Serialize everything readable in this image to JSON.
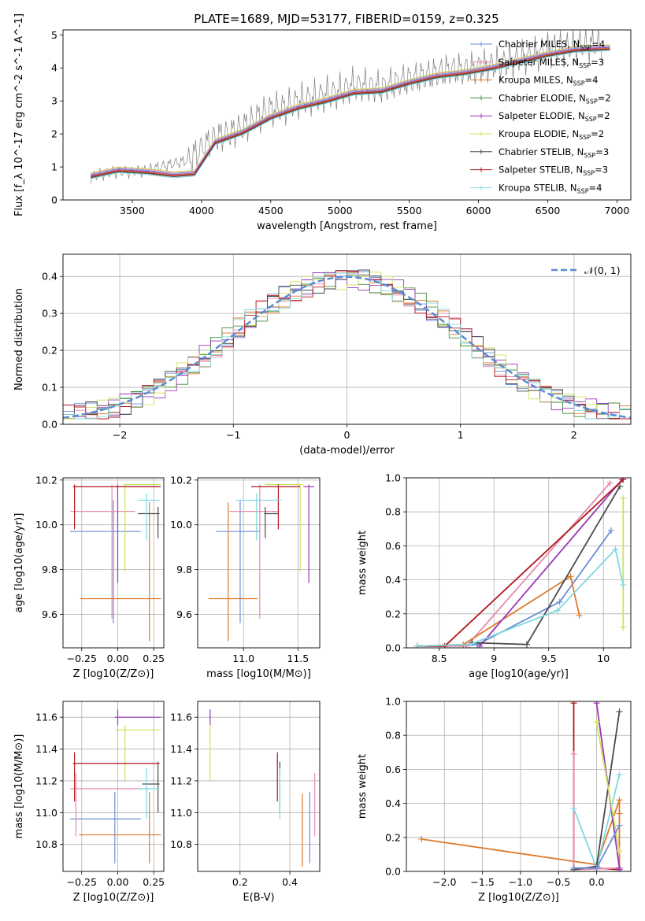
{
  "figure_title": "PLATE=1689, MJD=53177, FIBERID=0159, z=0.325",
  "chart_data": [
    {
      "type": "line",
      "panel": "spectrum",
      "xlabel": "wavelength [Angstrom, rest frame]",
      "ylabel": "Flux [f_λ 10^-17 erg cm^-2 s^-1 A^-1]",
      "xlim": [
        3000,
        7100
      ],
      "ylim": [
        0,
        5.15
      ],
      "xticks": [
        3500,
        4000,
        4500,
        5000,
        5500,
        6000,
        6500,
        7000
      ],
      "yticks": [
        0,
        1,
        2,
        3,
        4,
        5
      ],
      "grid": false,
      "legend": "top-right",
      "data_series": {
        "name": "",
        "color": "#808080",
        "x": [
          3200,
          3300,
          3400,
          3500,
          3600,
          3700,
          3800,
          3900,
          4000,
          4100,
          4200,
          4300,
          4400,
          4500,
          4600,
          4700,
          4800,
          4900,
          5000,
          5100,
          5200,
          5300,
          5400,
          5500,
          5600,
          5700,
          5800,
          5900,
          6000,
          6100,
          6200,
          6300,
          6400,
          6500,
          6600,
          6700,
          6800,
          6900
        ],
        "y": [
          0.7,
          0.8,
          0.85,
          0.85,
          0.9,
          1.0,
          1.1,
          1.2,
          1.55,
          1.9,
          2.0,
          2.2,
          2.5,
          2.75,
          2.8,
          3.0,
          3.1,
          3.2,
          3.3,
          3.5,
          3.45,
          3.4,
          3.55,
          3.65,
          3.75,
          3.85,
          3.95,
          3.95,
          4.0,
          4.1,
          4.15,
          4.3,
          4.4,
          4.55,
          4.6,
          4.65,
          4.7,
          4.7
        ]
      },
      "models": {
        "x": [
          3200,
          3400,
          3600,
          3800,
          3950,
          4100,
          4300,
          4500,
          4700,
          4900,
          5100,
          5300,
          5500,
          5700,
          5900,
          6100,
          6300,
          6500,
          6700,
          6950
        ],
        "base": [
          0.72,
          0.9,
          0.85,
          0.75,
          0.8,
          1.75,
          2.05,
          2.5,
          2.8,
          3.0,
          3.25,
          3.3,
          3.55,
          3.75,
          3.85,
          4.0,
          4.2,
          4.4,
          4.55,
          4.6
        ]
      },
      "series": [
        {
          "name": "Chabrier MILES, N_SSP=4",
          "color": "#6a8fd6",
          "offset": 0.05
        },
        {
          "name": "Salpeter MILES, N_SSP=3",
          "color": "#e68ab0",
          "offset": 0.08
        },
        {
          "name": "Kroupa MILES, N_SSP=4",
          "color": "#de7a2a",
          "offset": 0.0
        },
        {
          "name": "Chabrier ELODIE, N_SSP=2",
          "color": "#3f8f3f",
          "offset": -0.03
        },
        {
          "name": "Salpeter ELODIE, N_SSP=2",
          "color": "#9b38b5",
          "offset": 0.02
        },
        {
          "name": "Kroupa ELODIE, N_SSP=2",
          "color": "#cce35a",
          "offset": 0.1
        },
        {
          "name": "Chabrier STELIB, N_SSP=3",
          "color": "#4a4a4a",
          "offset": -0.05
        },
        {
          "name": "Salpeter STELIB, N_SSP=3",
          "color": "#b3171c",
          "offset": -0.02
        },
        {
          "name": "Kroupa STELIB, N_SSP=4",
          "color": "#7fd9e2",
          "offset": -0.08
        }
      ]
    },
    {
      "type": "line",
      "panel": "residuals",
      "xlabel": "(data-model)/error",
      "ylabel": "Normed distribution",
      "xlim": [
        -2.5,
        2.5
      ],
      "ylim": [
        0,
        0.46
      ],
      "xticks": [
        -2,
        -1,
        0,
        1,
        2
      ],
      "yticks": [
        0.0,
        0.1,
        0.2,
        0.3,
        0.4
      ],
      "grid": true,
      "legend": "top-right",
      "curve": {
        "name": "𝒩(0, 1)",
        "color": "#5b8bd6",
        "mean": 0,
        "sigma": 1
      }
    },
    {
      "type": "scatter",
      "panel": "age-vs-Z",
      "xlabel": "Z [log10(Z/Z⊙)]",
      "ylabel": "age [log10(age/yr)]",
      "xlim": [
        -0.38,
        0.32
      ],
      "ylim": [
        9.45,
        10.21
      ],
      "xticks": [
        -0.25,
        0.0,
        0.25
      ],
      "xtick_labels": [
        "−0.25",
        "0.00",
        "0.25"
      ],
      "yticks": [
        9.6,
        9.8,
        10.0,
        10.2
      ],
      "yerr_note": "crosshair error bars",
      "points": [
        {
          "color": "#6a8fd6",
          "x": -0.03,
          "xlo": -0.33,
          "xhi": 0.16,
          "y": 9.97,
          "ylo": 9.56,
          "yhi": 10.11
        },
        {
          "color": "#e68ab0",
          "x": -0.04,
          "xlo": -0.33,
          "xhi": 0.12,
          "y": 10.06,
          "ylo": 9.58,
          "yhi": 10.18
        },
        {
          "color": "#de7a2a",
          "x": 0.22,
          "xlo": -0.26,
          "xhi": 0.3,
          "y": 9.67,
          "ylo": 9.48,
          "yhi": 10.1
        },
        {
          "color": "#9b38b5",
          "x": 0.0,
          "xlo": -0.02,
          "xhi": 0.3,
          "y": 10.17,
          "ylo": 9.74,
          "yhi": 10.18
        },
        {
          "color": "#cce35a",
          "x": 0.05,
          "xlo": 0.04,
          "xhi": 0.3,
          "y": 10.18,
          "ylo": 9.79,
          "yhi": 10.18
        },
        {
          "color": "#4a4a4a",
          "x": 0.28,
          "xlo": 0.14,
          "xhi": 0.29,
          "y": 10.05,
          "ylo": 9.94,
          "yhi": 10.08
        },
        {
          "color": "#b3171c",
          "x": -0.3,
          "xlo": -0.31,
          "xhi": 0.29,
          "y": 10.17,
          "ylo": 9.98,
          "yhi": 10.18
        },
        {
          "color": "#7fd9e2",
          "x": 0.2,
          "xlo": 0.14,
          "xhi": 0.29,
          "y": 10.11,
          "ylo": 9.93,
          "yhi": 10.14
        }
      ]
    },
    {
      "type": "scatter",
      "panel": "age-vs-mass",
      "xlabel": "mass [log10(M/M⊙)]",
      "ylabel": "",
      "xlim": [
        10.58,
        11.7
      ],
      "ylim": [
        9.45,
        10.21
      ],
      "xticks": [
        11.0,
        11.5
      ],
      "xtick_labels": [
        "11.0",
        "11.5"
      ],
      "yticks": [
        9.6,
        9.8,
        10.0,
        10.2
      ],
      "points": [
        {
          "color": "#6a8fd6",
          "x": 10.97,
          "xlo": 10.75,
          "xhi": 11.15,
          "y": 9.97,
          "ylo": 9.56,
          "yhi": 10.11
        },
        {
          "color": "#e68ab0",
          "x": 11.15,
          "xlo": 10.87,
          "xhi": 11.32,
          "y": 10.06,
          "ylo": 9.58,
          "yhi": 10.18
        },
        {
          "color": "#de7a2a",
          "x": 10.86,
          "xlo": 10.68,
          "xhi": 11.13,
          "y": 9.67,
          "ylo": 9.48,
          "yhi": 10.1
        },
        {
          "color": "#9b38b5",
          "x": 11.6,
          "xlo": 11.55,
          "xhi": 11.65,
          "y": 10.17,
          "ylo": 9.74,
          "yhi": 10.18
        },
        {
          "color": "#cce35a",
          "x": 11.52,
          "xlo": 11.2,
          "xhi": 11.55,
          "y": 10.18,
          "ylo": 9.79,
          "yhi": 10.18
        },
        {
          "color": "#4a4a4a",
          "x": 11.2,
          "xlo": 11.19,
          "xhi": 11.32,
          "y": 10.05,
          "ylo": 9.94,
          "yhi": 10.08
        },
        {
          "color": "#b3171c",
          "x": 11.32,
          "xlo": 11.07,
          "xhi": 11.52,
          "y": 10.17,
          "ylo": 9.98,
          "yhi": 10.18
        },
        {
          "color": "#7fd9e2",
          "x": 11.12,
          "xlo": 10.93,
          "xhi": 11.35,
          "y": 10.11,
          "ylo": 9.93,
          "yhi": 10.14
        }
      ]
    },
    {
      "type": "line",
      "panel": "weight-vs-age",
      "xlabel": "age [log10(age/yr)]",
      "ylabel": "mass weight",
      "xlim": [
        8.2,
        10.25
      ],
      "ylim": [
        0,
        1.0
      ],
      "xticks": [
        8.5,
        9.0,
        9.5,
        10.0
      ],
      "yticks": [
        0.0,
        0.2,
        0.4,
        0.6,
        0.8,
        1.0
      ],
      "grid": true,
      "series": [
        {
          "color": "#6a8fd6",
          "x": [
            8.3,
            8.85,
            9.6,
            10.07
          ],
          "y": [
            0.01,
            0.02,
            0.27,
            0.69
          ]
        },
        {
          "color": "#e68ab0",
          "x": [
            8.3,
            8.75,
            10.06
          ],
          "y": [
            0.01,
            0.01,
            0.97
          ]
        },
        {
          "color": "#de7a2a",
          "x": [
            8.3,
            8.72,
            9.7,
            9.78
          ],
          "y": [
            0.01,
            0.02,
            0.42,
            0.19
          ]
        },
        {
          "color": "#9b38b5",
          "x": [
            8.87,
            10.17
          ],
          "y": [
            0.01,
            0.99
          ]
        },
        {
          "color": "#cce35a",
          "x": [
            10.18,
            10.18
          ],
          "y": [
            0.12,
            0.88
          ]
        },
        {
          "color": "#4a4a4a",
          "x": [
            8.8,
            9.3,
            10.15
          ],
          "y": [
            0.03,
            0.02,
            0.95
          ]
        },
        {
          "color": "#b3171c",
          "x": [
            8.3,
            8.55,
            10.18
          ],
          "y": [
            0.01,
            0.01,
            0.99
          ]
        },
        {
          "color": "#7fd9e2",
          "x": [
            8.3,
            8.78,
            9.58,
            10.11,
            10.18
          ],
          "y": [
            0.01,
            0.02,
            0.22,
            0.58,
            0.37
          ]
        }
      ]
    },
    {
      "type": "scatter",
      "panel": "mass-vs-Z",
      "xlabel": "Z [log10(Z/Z⊙)]",
      "ylabel": "mass [log10(M/M⊙)]",
      "xlim": [
        -0.38,
        0.32
      ],
      "ylim": [
        10.63,
        11.7
      ],
      "xticks": [
        -0.25,
        0.0,
        0.25
      ],
      "xtick_labels": [
        "−0.25",
        "0.00",
        "0.25"
      ],
      "yticks": [
        10.8,
        11.0,
        11.2,
        11.4,
        11.6
      ],
      "points": [
        {
          "color": "#6a8fd6",
          "x": -0.02,
          "xlo": -0.33,
          "xhi": 0.16,
          "y": 10.96,
          "ylo": 10.68,
          "yhi": 11.13
        },
        {
          "color": "#e68ab0",
          "x": -0.29,
          "xlo": -0.33,
          "xhi": 0.22,
          "y": 11.15,
          "ylo": 10.85,
          "yhi": 11.25
        },
        {
          "color": "#de7a2a",
          "x": 0.22,
          "xlo": -0.27,
          "xhi": 0.3,
          "y": 10.86,
          "ylo": 10.68,
          "yhi": 11.13
        },
        {
          "color": "#9b38b5",
          "x": 0.0,
          "xlo": -0.02,
          "xhi": 0.3,
          "y": 11.6,
          "ylo": 11.55,
          "yhi": 11.65
        },
        {
          "color": "#cce35a",
          "x": 0.05,
          "xlo": -0.02,
          "xhi": 0.3,
          "y": 11.52,
          "ylo": 11.2,
          "yhi": 11.55
        },
        {
          "color": "#4a4a4a",
          "x": 0.28,
          "xlo": 0.17,
          "xhi": 0.29,
          "y": 11.18,
          "ylo": 11.0,
          "yhi": 11.32
        },
        {
          "color": "#b3171c",
          "x": -0.3,
          "xlo": -0.31,
          "xhi": 0.29,
          "y": 11.31,
          "ylo": 11.07,
          "yhi": 11.38
        },
        {
          "color": "#7fd9e2",
          "x": 0.2,
          "xlo": 0.14,
          "xhi": 0.29,
          "y": 11.15,
          "ylo": 10.96,
          "yhi": 11.28
        }
      ]
    },
    {
      "type": "scatter",
      "panel": "mass-vs-EBV",
      "xlabel": "E(B-V)",
      "ylabel": "",
      "xlim": [
        0.03,
        0.52
      ],
      "ylim": [
        10.63,
        11.7
      ],
      "xticks": [
        0.2,
        0.4
      ],
      "xtick_labels": [
        "0.2",
        "0.4"
      ],
      "yticks": [
        10.8,
        11.0,
        11.2,
        11.4,
        11.6
      ],
      "points": [
        {
          "color": "#6a8fd6",
          "x": 0.48,
          "ylo": 10.68,
          "yhi": 11.13,
          "y": 10.96
        },
        {
          "color": "#e68ab0",
          "x": 0.5,
          "ylo": 10.85,
          "yhi": 11.25,
          "y": 11.15
        },
        {
          "color": "#de7a2a",
          "x": 0.45,
          "ylo": 10.66,
          "yhi": 11.12,
          "y": 10.86
        },
        {
          "color": "#9b38b5",
          "x": 0.08,
          "ylo": 11.55,
          "yhi": 11.65,
          "y": 11.6
        },
        {
          "color": "#cce35a",
          "x": 0.08,
          "ylo": 11.2,
          "yhi": 11.55,
          "y": 11.52
        },
        {
          "color": "#4a4a4a",
          "x": 0.36,
          "ylo": 11.0,
          "yhi": 11.32,
          "y": 11.18
        },
        {
          "color": "#b3171c",
          "x": 0.35,
          "ylo": 11.07,
          "yhi": 11.38,
          "y": 11.31
        },
        {
          "color": "#7fd9e2",
          "x": 0.36,
          "ylo": 10.96,
          "yhi": 11.28,
          "y": 11.15
        }
      ]
    },
    {
      "type": "line",
      "panel": "weight-vs-Z",
      "xlabel": "Z [log10(Z/Z⊙)]",
      "ylabel": "mass weight",
      "xlim": [
        -2.5,
        0.45
      ],
      "ylim": [
        0,
        1.0
      ],
      "xticks": [
        -2.0,
        -1.5,
        -1.0,
        -0.5,
        0.0
      ],
      "xtick_labels": [
        "−2.0",
        "−1.5",
        "−1.0",
        "−0.5",
        "0.0"
      ],
      "yticks": [
        0.0,
        0.2,
        0.4,
        0.6,
        0.8,
        1.0
      ],
      "grid": true,
      "series": [
        {
          "color": "#de7a2a",
          "x": [
            -2.3,
            0.0,
            0.3,
            0.3,
            0.3
          ],
          "y": [
            0.19,
            0.04,
            0.42,
            0.34,
            0.02
          ]
        },
        {
          "color": "#b3171c",
          "x": [
            -0.3,
            -0.3,
            0.0,
            0.3
          ],
          "y": [
            0.99,
            0.01,
            0.02,
            0.01
          ]
        },
        {
          "color": "#e68ab0",
          "x": [
            -0.3,
            -0.3,
            0.3
          ],
          "y": [
            0.69,
            0.01,
            0.02
          ]
        },
        {
          "color": "#7fd9e2",
          "x": [
            -0.3,
            0.0,
            0.3
          ],
          "y": [
            0.37,
            0.02,
            0.57
          ]
        },
        {
          "color": "#4a4a4a",
          "x": [
            -0.3,
            0.0,
            0.3
          ],
          "y": [
            0.01,
            0.03,
            0.94
          ]
        },
        {
          "color": "#9b38b5",
          "x": [
            0.0,
            0.3,
            0.3
          ],
          "y": [
            0.99,
            0.02,
            0.01
          ]
        },
        {
          "color": "#cce35a",
          "x": [
            0.0,
            0.3
          ],
          "y": [
            0.88,
            0.12
          ]
        },
        {
          "color": "#6a8fd6",
          "x": [
            -0.3,
            0.0,
            0.3
          ],
          "y": [
            0.02,
            0.02,
            0.27
          ]
        }
      ]
    }
  ]
}
